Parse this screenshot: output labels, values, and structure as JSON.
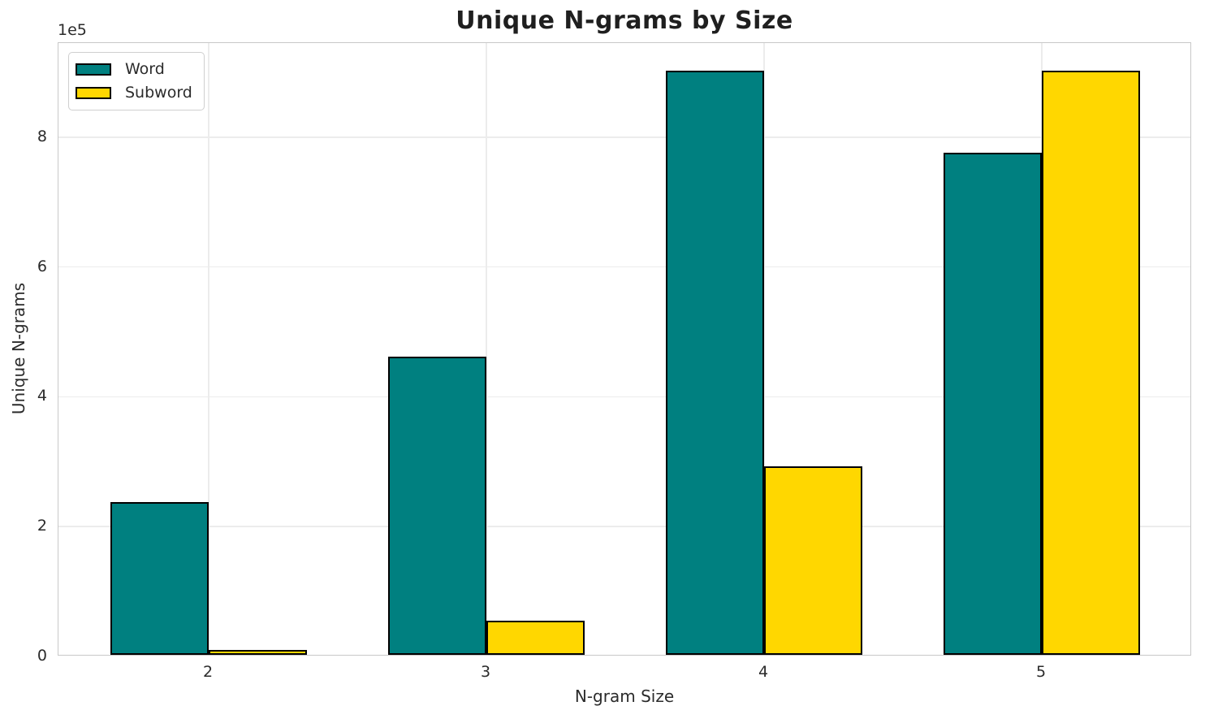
{
  "chart_data": {
    "type": "bar",
    "title": "Unique N-grams by Size",
    "xlabel": "N-gram Size",
    "ylabel": "Unique N-grams",
    "y_offset_text": "1e5",
    "categories": [
      "2",
      "3",
      "4",
      "5"
    ],
    "series": [
      {
        "name": "Word",
        "color": "#008080",
        "values": [
          235000,
          460000,
          900000,
          773000
        ]
      },
      {
        "name": "Subword",
        "color": "#FFD700",
        "values": [
          7500,
          52500,
          290000,
          900000
        ]
      }
    ],
    "bar_edge_color": "#000000",
    "ylim": [
      0,
      945000
    ],
    "yticks": [
      {
        "value": 0,
        "label": "0"
      },
      {
        "value": 200000,
        "label": "2"
      },
      {
        "value": 400000,
        "label": "4"
      },
      {
        "value": 600000,
        "label": "6"
      },
      {
        "value": 800000,
        "label": "8"
      }
    ],
    "grid": true,
    "legend_position": "upper left"
  }
}
